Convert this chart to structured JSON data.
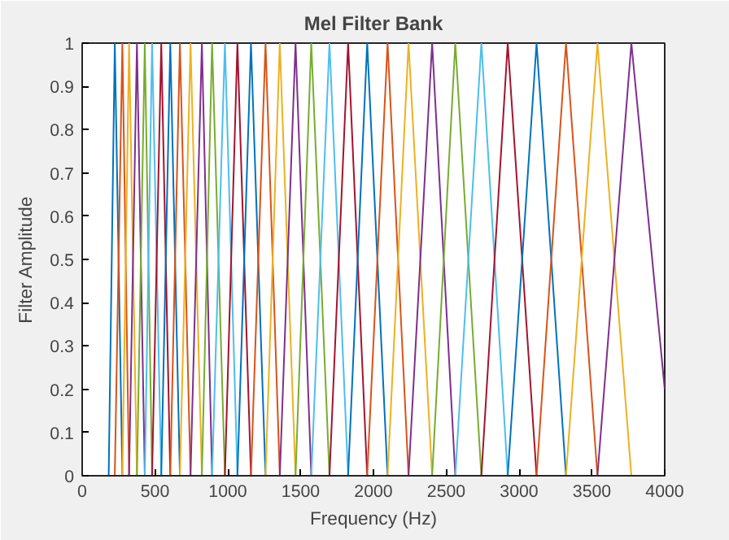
{
  "chart_data": {
    "type": "line",
    "title": "Mel Filter Bank",
    "xlabel": "Frequency (Hz)",
    "ylabel": "Filter Amplitude",
    "xlim": [
      0,
      4000
    ],
    "xticks": [
      0,
      500,
      1000,
      1500,
      2000,
      2500,
      3000,
      3500,
      4000
    ],
    "ylim": [
      0,
      1
    ],
    "yticks": [
      0,
      0.1,
      0.2,
      0.3,
      0.4,
      0.5,
      0.6,
      0.7,
      0.8,
      0.9,
      1
    ],
    "grid": false,
    "line_style": "solid",
    "marker": "none",
    "series": [
      {
        "color": "#0072bd",
        "x": [
          182,
          224,
          276
        ],
        "values": [
          0,
          1,
          0
        ]
      },
      {
        "color": "#d95319",
        "x": [
          224,
          276,
          322
        ],
        "values": [
          0,
          1,
          0
        ]
      },
      {
        "color": "#edb120",
        "x": [
          276,
          322,
          376
        ],
        "values": [
          0,
          1,
          0
        ]
      },
      {
        "color": "#7e2f8e",
        "x": [
          322,
          376,
          430
        ],
        "values": [
          0,
          1,
          0
        ]
      },
      {
        "color": "#77ac30",
        "x": [
          376,
          430,
          480
        ],
        "values": [
          0,
          1,
          0
        ]
      },
      {
        "color": "#4dbeee",
        "x": [
          430,
          480,
          543
        ],
        "values": [
          0,
          1,
          0
        ]
      },
      {
        "color": "#a2142f",
        "x": [
          480,
          543,
          605
        ],
        "values": [
          0,
          1,
          0
        ]
      },
      {
        "color": "#0072bd",
        "x": [
          543,
          605,
          671
        ],
        "values": [
          0,
          1,
          0
        ]
      },
      {
        "color": "#d95319",
        "x": [
          605,
          671,
          744
        ],
        "values": [
          0,
          1,
          0
        ]
      },
      {
        "color": "#edb120",
        "x": [
          671,
          744,
          822
        ],
        "values": [
          0,
          1,
          0
        ]
      },
      {
        "color": "#7e2f8e",
        "x": [
          744,
          822,
          892
        ],
        "values": [
          0,
          1,
          0
        ]
      },
      {
        "color": "#77ac30",
        "x": [
          822,
          892,
          980
        ],
        "values": [
          0,
          1,
          0
        ]
      },
      {
        "color": "#4dbeee",
        "x": [
          892,
          980,
          1066
        ],
        "values": [
          0,
          1,
          0
        ]
      },
      {
        "color": "#a2142f",
        "x": [
          980,
          1066,
          1159
        ],
        "values": [
          0,
          1,
          0
        ]
      },
      {
        "color": "#0072bd",
        "x": [
          1066,
          1159,
          1259
        ],
        "values": [
          0,
          1,
          0
        ]
      },
      {
        "color": "#d95319",
        "x": [
          1159,
          1259,
          1357
        ],
        "values": [
          0,
          1,
          0
        ]
      },
      {
        "color": "#edb120",
        "x": [
          1259,
          1357,
          1465
        ],
        "values": [
          0,
          1,
          0
        ]
      },
      {
        "color": "#7e2f8e",
        "x": [
          1357,
          1465,
          1573
        ],
        "values": [
          0,
          1,
          0
        ]
      },
      {
        "color": "#77ac30",
        "x": [
          1465,
          1573,
          1698
        ],
        "values": [
          0,
          1,
          0
        ]
      },
      {
        "color": "#4dbeee",
        "x": [
          1573,
          1698,
          1826
        ],
        "values": [
          0,
          1,
          0
        ]
      },
      {
        "color": "#a2142f",
        "x": [
          1698,
          1826,
          1957
        ],
        "values": [
          0,
          1,
          0
        ]
      },
      {
        "color": "#0072bd",
        "x": [
          1826,
          1957,
          2097
        ],
        "values": [
          0,
          1,
          0
        ]
      },
      {
        "color": "#d95319",
        "x": [
          1957,
          2097,
          2241
        ],
        "values": [
          0,
          1,
          0
        ]
      },
      {
        "color": "#edb120",
        "x": [
          2097,
          2241,
          2403
        ],
        "values": [
          0,
          1,
          0
        ]
      },
      {
        "color": "#7e2f8e",
        "x": [
          2241,
          2403,
          2562
        ],
        "values": [
          0,
          1,
          0
        ]
      },
      {
        "color": "#77ac30",
        "x": [
          2403,
          2562,
          2741
        ],
        "values": [
          0,
          1,
          0
        ]
      },
      {
        "color": "#4dbeee",
        "x": [
          2562,
          2741,
          2922
        ],
        "values": [
          0,
          1,
          0
        ]
      },
      {
        "color": "#a2142f",
        "x": [
          2741,
          2922,
          3120
        ],
        "values": [
          0,
          1,
          0
        ]
      },
      {
        "color": "#0072bd",
        "x": [
          2922,
          3120,
          3322
        ],
        "values": [
          0,
          1,
          0
        ]
      },
      {
        "color": "#d95319",
        "x": [
          3120,
          3322,
          3538
        ],
        "values": [
          0,
          1,
          0
        ]
      },
      {
        "color": "#edb120",
        "x": [
          3322,
          3538,
          3771
        ],
        "values": [
          0,
          1,
          0
        ]
      },
      {
        "color": "#7e2f8e",
        "x": [
          3538,
          3771,
          4000
        ],
        "values": [
          0,
          1,
          0.2
        ]
      }
    ]
  }
}
